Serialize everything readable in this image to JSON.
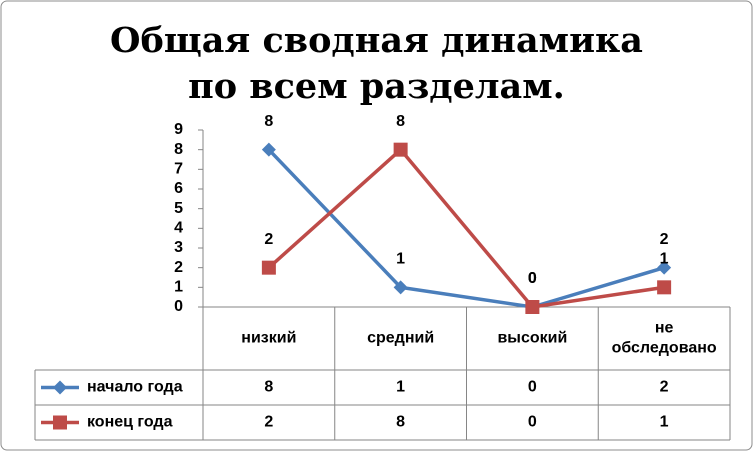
{
  "chart_data": {
    "type": "line",
    "title": "Общая сводная динамика по всем разделам.",
    "categories": [
      "низкий",
      "средний",
      "высокий",
      "не обследовано"
    ],
    "series": [
      {
        "name": "начало года",
        "color": "#4a7ebb",
        "marker": "diamond",
        "values": [
          8,
          1,
          0,
          2
        ]
      },
      {
        "name": "конец года",
        "color": "#be4b48",
        "marker": "square",
        "values": [
          2,
          8,
          0,
          1
        ]
      }
    ],
    "ylim": [
      0,
      9
    ],
    "yticks": [
      0,
      1,
      2,
      3,
      4,
      5,
      6,
      7,
      8,
      9
    ],
    "grid": false,
    "data_table": true
  }
}
